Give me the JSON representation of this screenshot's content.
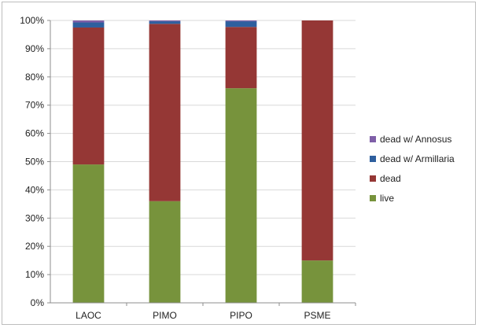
{
  "chart_data": {
    "type": "bar",
    "stacked": true,
    "percent": true,
    "categories": [
      "LAOC",
      "PIMO",
      "PIPO",
      "PSME"
    ],
    "series": [
      {
        "name": "live",
        "color": "#77933c",
        "values": [
          49,
          36,
          76,
          15
        ]
      },
      {
        "name": "dead",
        "color": "#953735",
        "values": [
          48.5,
          62.8,
          21.7,
          85
        ]
      },
      {
        "name": "dead w/ Armillaria",
        "color": "#2e5f9e",
        "values": [
          1.8,
          0.9,
          2.0,
          0
        ]
      },
      {
        "name": "dead w/ Annosus",
        "color": "#7f5fa8",
        "values": [
          0.7,
          0.3,
          0.3,
          0
        ]
      }
    ],
    "y_ticks": [
      "0%",
      "10%",
      "20%",
      "30%",
      "40%",
      "50%",
      "60%",
      "70%",
      "80%",
      "90%",
      "100%"
    ],
    "ylim": [
      0,
      100
    ],
    "grid": true,
    "legend_position": "right",
    "legend_order": [
      "dead w/ Annosus",
      "dead w/ Armillaria",
      "dead",
      "live"
    ],
    "title": "",
    "xlabel": "",
    "ylabel": ""
  }
}
